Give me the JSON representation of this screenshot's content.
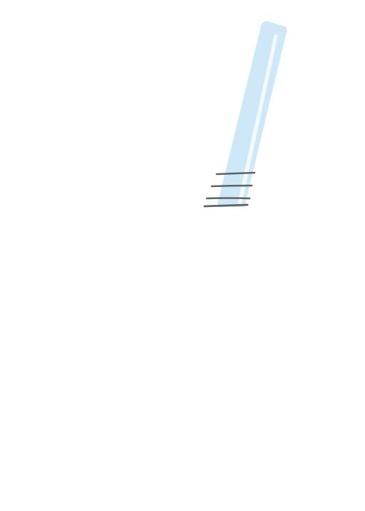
{
  "illustration": {
    "subject": "tall glass",
    "colors": {
      "glass_fill": "#cfe8f8",
      "glass_highlight": "#f3f9fe",
      "stripe_color": "#5f6367",
      "background": "#ffffff"
    },
    "stripe_count": 4
  }
}
